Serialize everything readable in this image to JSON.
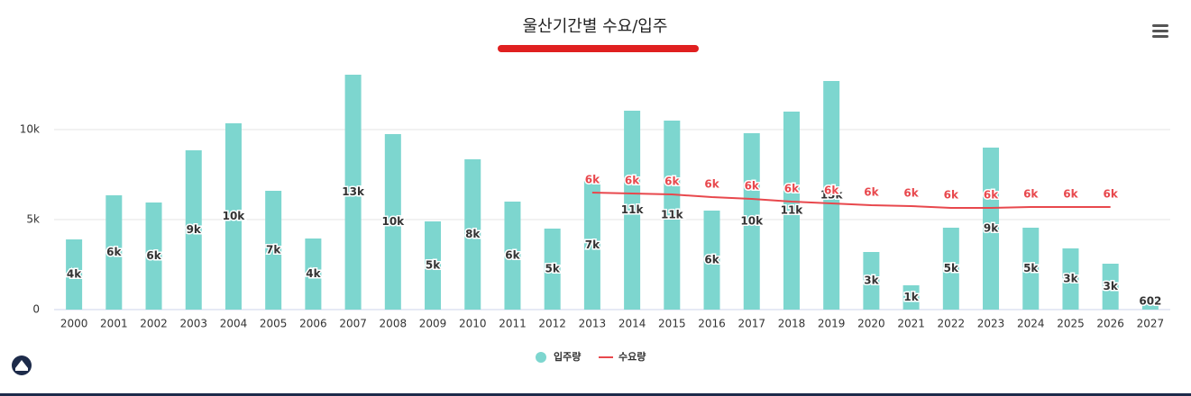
{
  "chart_data": {
    "type": "bar-line",
    "title": "울산기간별 수요/입주",
    "categories": [
      "2000",
      "2001",
      "2002",
      "2003",
      "2004",
      "2005",
      "2006",
      "2007",
      "2008",
      "2009",
      "2010",
      "2011",
      "2012",
      "2013",
      "2014",
      "2015",
      "2016",
      "2017",
      "2018",
      "2019",
      "2020",
      "2021",
      "2022",
      "2023",
      "2024",
      "2025",
      "2026",
      "2027"
    ],
    "series": [
      {
        "name": "입주량",
        "type": "bar",
        "color": "#7dd6cf",
        "values": [
          3900,
          6350,
          5950,
          8850,
          10350,
          6600,
          3950,
          13050,
          9750,
          4900,
          8350,
          6000,
          4500,
          7150,
          11050,
          10500,
          5500,
          9800,
          11000,
          12700,
          3200,
          1350,
          4550,
          9000,
          4550,
          3400,
          2550,
          602
        ],
        "value_labels": [
          "4k",
          "6k",
          "6k",
          "9k",
          "10k",
          "7k",
          "4k",
          "13k",
          "10k",
          "5k",
          "8k",
          "6k",
          "5k",
          "7k",
          "11k",
          "11k",
          "6k",
          "10k",
          "11k",
          "13k",
          "3k",
          "1k",
          "5k",
          "9k",
          "5k",
          "3k",
          "3k",
          "602"
        ]
      },
      {
        "name": "수요량",
        "type": "line",
        "color": "#e8484d",
        "values": [
          null,
          null,
          null,
          null,
          null,
          null,
          null,
          null,
          null,
          null,
          null,
          null,
          null,
          6500,
          6450,
          6400,
          6250,
          6150,
          6000,
          5900,
          5800,
          5750,
          5650,
          5650,
          5700,
          5700,
          5700,
          null
        ],
        "value_labels": [
          null,
          null,
          null,
          null,
          null,
          null,
          null,
          null,
          null,
          null,
          null,
          null,
          null,
          "6k",
          "6k",
          "6k",
          "6k",
          "6k",
          "6k",
          "6k",
          "6k",
          "6k",
          "6k",
          "6k",
          "6k",
          "6k",
          "6k",
          null
        ]
      }
    ],
    "ylim": [
      0,
      14000
    ],
    "yticks": [
      0,
      {
        "value": 5000,
        "label": "5k"
      },
      {
        "value": 10000,
        "label": "10k"
      }
    ],
    "grid": true
  }
}
